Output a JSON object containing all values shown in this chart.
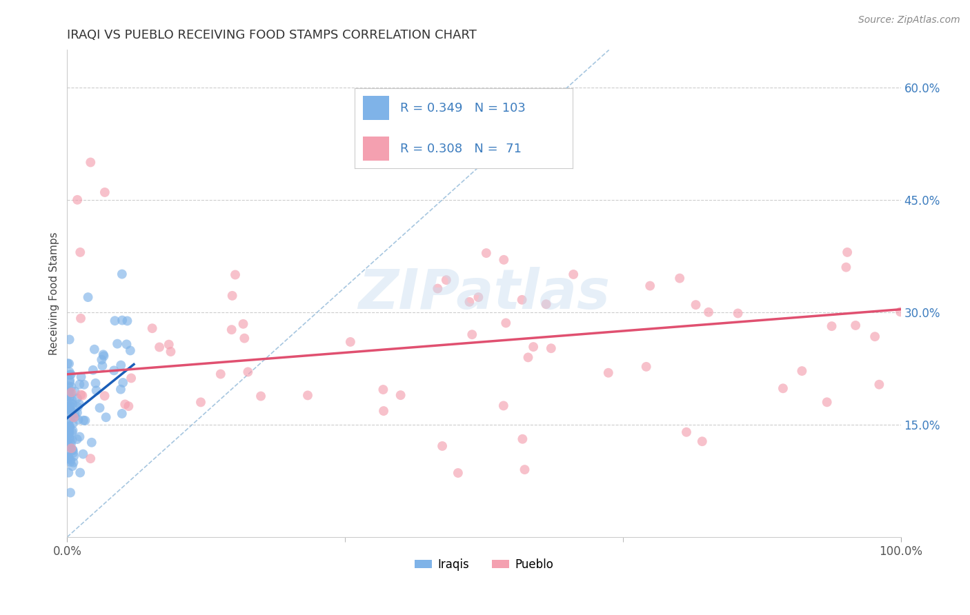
{
  "title": "IRAQI VS PUEBLO RECEIVING FOOD STAMPS CORRELATION CHART",
  "source_text": "Source: ZipAtlas.com",
  "ylabel": "Receiving Food Stamps",
  "xmin": 0.0,
  "xmax": 1.0,
  "ymin": 0.0,
  "ymax": 0.65,
  "yticks": [
    0.15,
    0.3,
    0.45,
    0.6
  ],
  "ytick_labels": [
    "15.0%",
    "30.0%",
    "45.0%",
    "60.0%"
  ],
  "xtick_labels": [
    "0.0%",
    "100.0%"
  ],
  "xticks": [
    0.0,
    1.0
  ],
  "gridline_color": "#cccccc",
  "background_color": "#ffffff",
  "iraqi_color": "#7fb3e8",
  "pueblo_color": "#f4a0b0",
  "iraqi_R": 0.349,
  "iraqi_N": 103,
  "pueblo_R": 0.308,
  "pueblo_N": 71,
  "legend_label_iraqi": "Iraqis",
  "legend_label_pueblo": "Pueblo",
  "title_color": "#333333",
  "legend_text_color": "#3d7dbf",
  "watermark": "ZIPatlas",
  "iraqi_trend_color": "#1a5eb8",
  "pueblo_trend_color": "#e05070",
  "ref_line_color": "#90b8d8",
  "source_color": "#888888"
}
